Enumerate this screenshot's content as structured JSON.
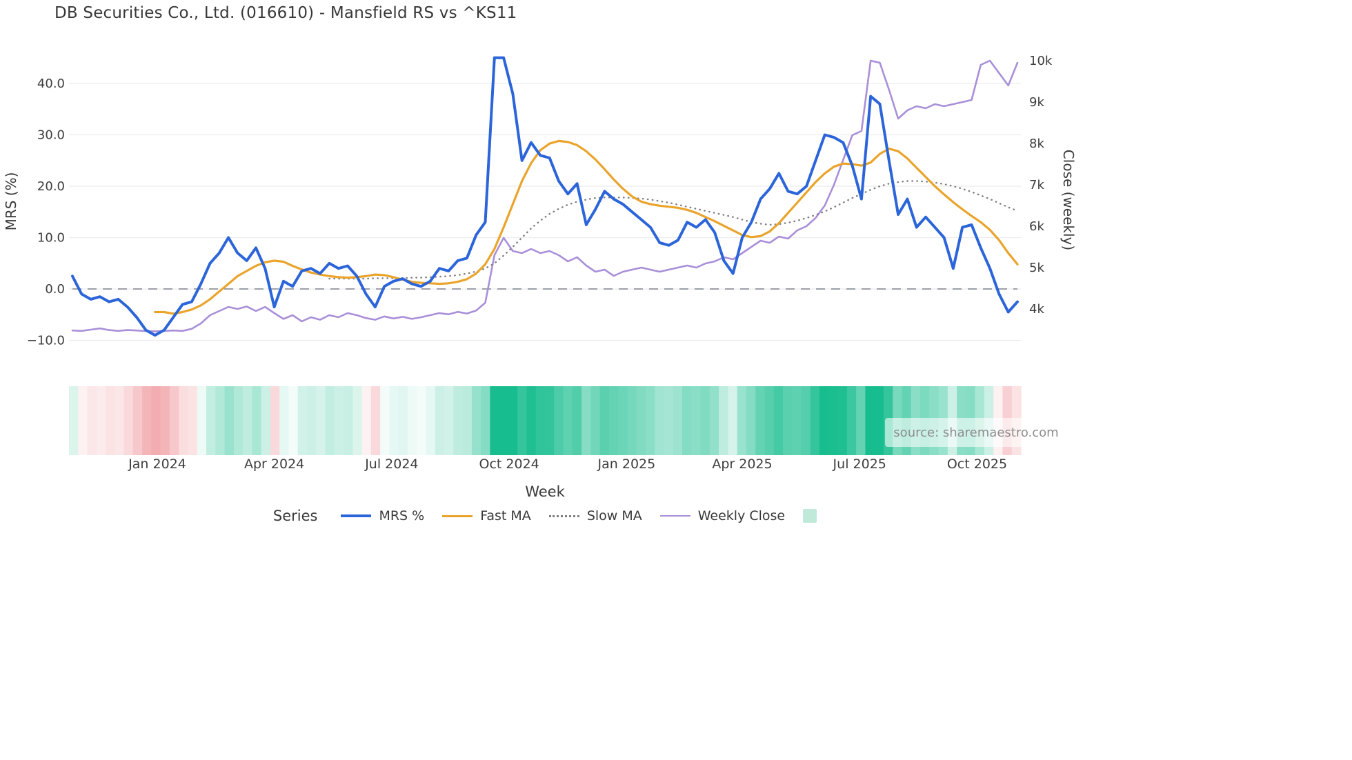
{
  "source_text": "source: sharemaestro.com",
  "chart_data": {
    "type": "line",
    "title": "DB Securities Co., Ltd. (016610) - Mansfield RS vs ^KS11",
    "xlabel": "Week",
    "ylabel": "MRS (%)",
    "y2label": "Close (weekly)",
    "weeks": 104,
    "grid": "horizontal-only",
    "zero_line": true,
    "left_axis": {
      "range": [
        -13,
        47
      ],
      "ticks": [
        {
          "v": 40,
          "label": "40.0"
        },
        {
          "v": 30,
          "label": "30.0"
        },
        {
          "v": 20,
          "label": "20.0"
        },
        {
          "v": 10,
          "label": "10.0"
        },
        {
          "v": 0,
          "label": "0.0"
        },
        {
          "v": -10,
          "label": "−10.0"
        }
      ]
    },
    "right_axis": {
      "range": [
        3400,
        10400
      ],
      "ticks": [
        {
          "v": 10000,
          "label": "10k"
        },
        {
          "v": 9000,
          "label": "9k"
        },
        {
          "v": 8000,
          "label": "8k"
        },
        {
          "v": 7000,
          "label": "7k"
        },
        {
          "v": 6000,
          "label": "6k"
        },
        {
          "v": 5000,
          "label": "5k"
        },
        {
          "v": 4000,
          "label": "4k"
        }
      ]
    },
    "x_axis": {
      "ticks": [
        {
          "i": 9.25,
          "label": "Jan 2024"
        },
        {
          "i": 22.0,
          "label": "Apr 2024"
        },
        {
          "i": 34.8,
          "label": "Jul 2024"
        },
        {
          "i": 47.6,
          "label": "Oct 2024"
        },
        {
          "i": 60.4,
          "label": "Jan 2025"
        },
        {
          "i": 73.0,
          "label": "Apr 2025"
        },
        {
          "i": 85.8,
          "label": "Jul 2025"
        },
        {
          "i": 98.6,
          "label": "Oct 2025"
        }
      ]
    },
    "series": [
      {
        "id": "mrs",
        "name": "MRS %",
        "axis": "left",
        "color": "#2b65d9",
        "width": 4,
        "start": 0,
        "values": [
          2.5,
          -1,
          -2,
          -1.5,
          -2.5,
          -2,
          -3.5,
          -5.5,
          -8,
          -9,
          -8,
          -5.5,
          -3,
          -2.5,
          1,
          5,
          7,
          10,
          7,
          5.5,
          8,
          4,
          -3.5,
          1.5,
          0.5,
          3.5,
          4,
          3,
          5,
          4,
          4.5,
          2.5,
          -1,
          -3.5,
          0.5,
          1.5,
          2,
          1,
          0.5,
          1.5,
          4,
          3.5,
          5.5,
          6,
          10.5,
          13,
          45,
          45,
          38,
          25,
          28.5,
          26,
          25.5,
          21,
          18.5,
          20.5,
          12.5,
          15.5,
          19,
          17.5,
          16.5,
          15,
          13.5,
          12,
          9,
          8.5,
          9.5,
          13,
          12,
          13.5,
          11,
          5.5,
          3,
          10,
          13,
          17.5,
          19.5,
          22.5,
          19,
          18.5,
          20,
          25,
          30,
          29.5,
          28.5,
          24,
          17.5,
          37.5,
          36,
          25,
          14.5,
          17.5,
          12,
          14,
          12,
          10,
          4,
          12,
          12.5,
          8,
          4,
          -1,
          -4.5,
          -2.5
        ]
      },
      {
        "id": "fast_ma",
        "name": "Fast MA",
        "axis": "left",
        "color": "#eaa42c",
        "width": 3.2,
        "start": 9,
        "values": [
          -4.5,
          -4.5,
          -4.8,
          -4.5,
          -4.0,
          -3.2,
          -2.0,
          -0.5,
          1.0,
          2.5,
          3.5,
          4.5,
          5.2,
          5.5,
          5.3,
          4.5,
          3.8,
          3.2,
          2.8,
          2.5,
          2.3,
          2.2,
          2.3,
          2.5,
          2.8,
          2.7,
          2.3,
          1.8,
          1.4,
          1.2,
          1.1,
          1.0,
          1.1,
          1.4,
          1.9,
          3.0,
          4.8,
          7.8,
          12.0,
          16.5,
          21.0,
          24.5,
          27.0,
          28.3,
          28.8,
          28.6,
          28.0,
          26.8,
          25.2,
          23.3,
          21.3,
          19.5,
          18.0,
          17.0,
          16.5,
          16.2,
          16.0,
          15.8,
          15.4,
          14.8,
          14.0,
          13.2,
          12.3,
          11.4,
          10.5,
          10.1,
          10.3,
          11.2,
          12.8,
          14.8,
          16.8,
          18.8,
          20.8,
          22.5,
          23.8,
          24.4,
          24.3,
          24.0,
          24.6,
          26.3,
          27.3,
          26.8,
          25.4,
          23.6,
          21.8,
          20.0,
          18.4,
          16.9,
          15.5,
          14.2,
          13.0,
          11.5,
          9.5,
          7.0,
          4.8
        ]
      },
      {
        "id": "slow_ma",
        "name": "Slow MA",
        "axis": "left",
        "color": "#7f7f7f",
        "width": 2.4,
        "dotted": true,
        "start": 28,
        "values": [
          2.0,
          2.0,
          2.0,
          2.0,
          2.0,
          2.1,
          2.1,
          2.1,
          2.1,
          2.2,
          2.2,
          2.3,
          2.4,
          2.5,
          2.7,
          3.0,
          3.4,
          4.0,
          5.0,
          6.5,
          8.2,
          10.0,
          11.8,
          13.3,
          14.6,
          15.6,
          16.4,
          17.0,
          17.4,
          17.7,
          17.8,
          17.8,
          17.8,
          17.7,
          17.6,
          17.4,
          17.1,
          16.8,
          16.4,
          16.0,
          15.6,
          15.2,
          14.8,
          14.4,
          14.0,
          13.5,
          13.0,
          12.7,
          12.5,
          12.6,
          12.9,
          13.3,
          13.8,
          14.4,
          15.1,
          15.9,
          16.8,
          17.7,
          18.5,
          19.3,
          20.0,
          20.5,
          20.8,
          21.0,
          21.0,
          20.9,
          20.7,
          20.4,
          20.0,
          19.5,
          18.9,
          18.2,
          17.5,
          16.7,
          15.9,
          15.2
        ]
      },
      {
        "id": "weekly_close",
        "name": "Weekly Close",
        "axis": "right",
        "color": "#a98fd8",
        "width": 2.6,
        "start": 0,
        "values": [
          3480,
          3470,
          3500,
          3530,
          3490,
          3470,
          3490,
          3480,
          3465,
          3460,
          3470,
          3480,
          3470,
          3520,
          3650,
          3850,
          3950,
          4050,
          4000,
          4060,
          3950,
          4050,
          3900,
          3760,
          3850,
          3700,
          3800,
          3740,
          3850,
          3800,
          3900,
          3850,
          3780,
          3740,
          3820,
          3770,
          3810,
          3760,
          3800,
          3850,
          3900,
          3870,
          3930,
          3890,
          3960,
          4150,
          5300,
          5720,
          5400,
          5350,
          5450,
          5350,
          5400,
          5300,
          5150,
          5250,
          5050,
          4900,
          4950,
          4800,
          4900,
          4950,
          5000,
          4950,
          4900,
          4950,
          5000,
          5050,
          5000,
          5100,
          5150,
          5250,
          5200,
          5350,
          5500,
          5650,
          5600,
          5750,
          5700,
          5900,
          6000,
          6200,
          6500,
          7000,
          7600,
          8200,
          8300,
          10000,
          9950,
          9300,
          8600,
          8800,
          8900,
          8850,
          8950,
          8900,
          8950,
          9000,
          9050,
          9900,
          10000,
          9700,
          9400,
          9950
        ]
      }
    ],
    "heatmap": {
      "source_series": "mrs",
      "positive_color": "#17bd8e",
      "negative_color": "#f2a6ab",
      "positive_max": 30,
      "negative_max": 10
    },
    "legend": {
      "title": "Series",
      "items": [
        {
          "label": "MRS %",
          "swatch": "line",
          "color": "#2b65d9",
          "width": 4
        },
        {
          "label": "Fast MA",
          "swatch": "line",
          "color": "#eaa42c",
          "width": 3.5
        },
        {
          "label": "Slow MA",
          "swatch": "dotted-line",
          "color": "#7f7f7f",
          "width": 3
        },
        {
          "label": "Weekly Close",
          "swatch": "line",
          "color": "#a98fd8",
          "width": 2.6
        },
        {
          "label": "",
          "swatch": "square",
          "color": "#bfe9d8"
        }
      ]
    }
  }
}
